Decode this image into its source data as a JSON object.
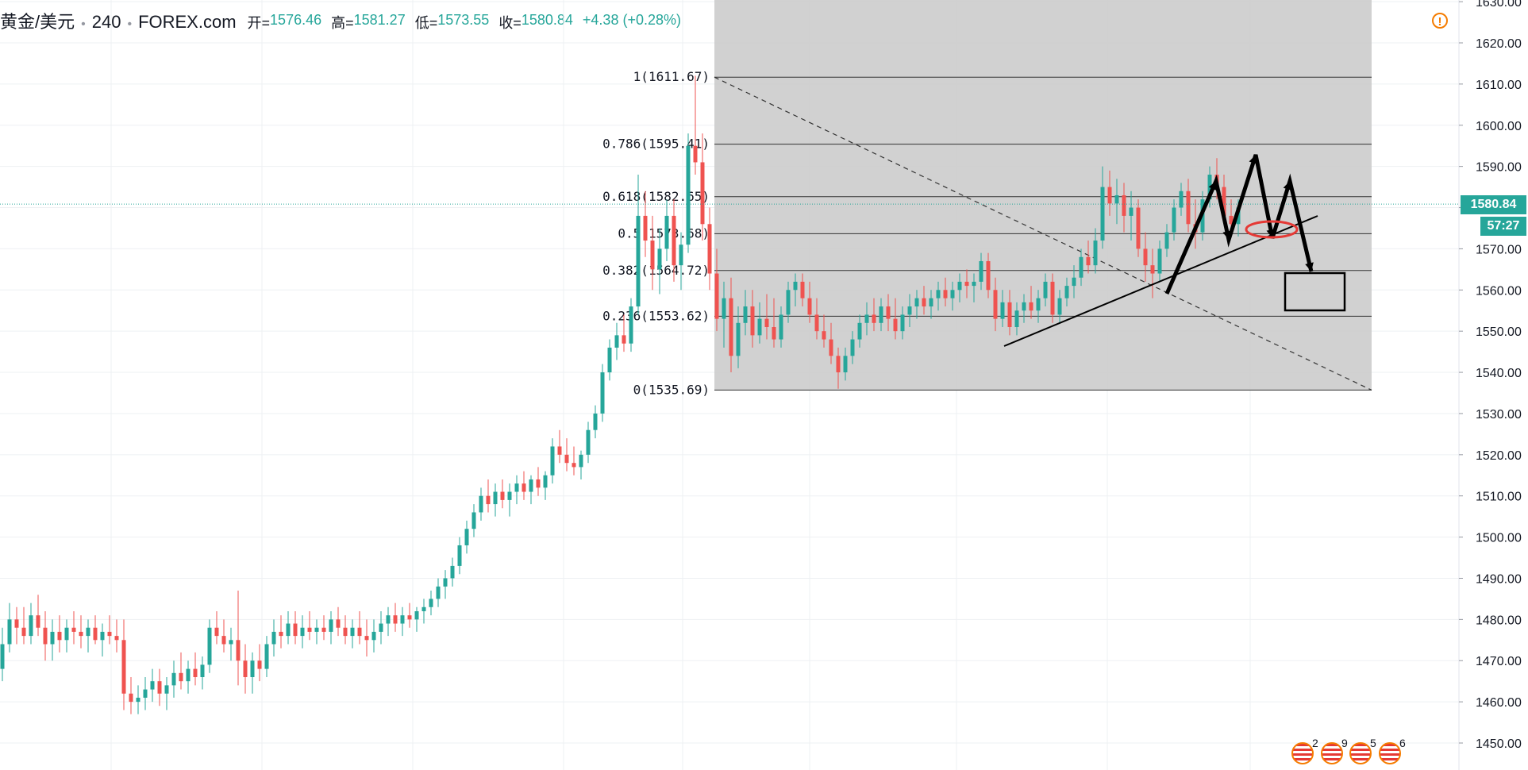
{
  "header": {
    "symbol": "黄金/美元",
    "timeframe": "240",
    "source": "FOREX.com",
    "open_label": "开=",
    "open": "1576.46",
    "high_label": "高=",
    "high": "1581.27",
    "low_label": "低=",
    "low": "1573.55",
    "close_label": "收=",
    "close": "1580.84",
    "change": "+4.38 (+0.28%)"
  },
  "warning_glyph": "!",
  "price_tags": {
    "last": "1580.84",
    "countdown": "57:27"
  },
  "events": [
    "2",
    "9",
    "5",
    "6"
  ],
  "colors": {
    "up": "#26a69a",
    "down": "#ef5350",
    "fib_box": "#cccccc",
    "ellipse": "#e53935",
    "annotation": "#000000"
  },
  "chart_data": {
    "type": "candlestick",
    "ylim": [
      1445,
      1630
    ],
    "yticks": [
      "1450.00",
      "1460.00",
      "1470.00",
      "1480.00",
      "1490.00",
      "1500.00",
      "1510.00",
      "1520.00",
      "1530.00",
      "1540.00",
      "1550.00",
      "1560.00",
      "1570.00",
      "1580.00",
      "1590.00",
      "1600.00",
      "1610.00",
      "1620.00",
      "1630.00"
    ],
    "series": [
      {
        "type": "candles",
        "ohlc": [
          [
            1468,
            1478,
            1465,
            1474
          ],
          [
            1474,
            1484,
            1472,
            1480
          ],
          [
            1480,
            1483,
            1474,
            1478
          ],
          [
            1478,
            1483,
            1474,
            1476
          ],
          [
            1476,
            1484,
            1474,
            1481
          ],
          [
            1481,
            1486,
            1476,
            1478
          ],
          [
            1478,
            1482,
            1470,
            1474
          ],
          [
            1474,
            1480,
            1470,
            1477
          ],
          [
            1477,
            1481,
            1472,
            1475
          ],
          [
            1475,
            1480,
            1472,
            1478
          ],
          [
            1478,
            1482,
            1474,
            1477
          ],
          [
            1477,
            1481,
            1473,
            1476
          ],
          [
            1476,
            1480,
            1472,
            1478
          ],
          [
            1478,
            1481,
            1474,
            1475
          ],
          [
            1475,
            1479,
            1471,
            1477
          ],
          [
            1477,
            1481,
            1474,
            1476
          ],
          [
            1476,
            1480,
            1472,
            1475
          ],
          [
            1475,
            1480,
            1458,
            1462
          ],
          [
            1462,
            1466,
            1457,
            1460
          ],
          [
            1460,
            1464,
            1457,
            1461
          ],
          [
            1461,
            1466,
            1458,
            1463
          ],
          [
            1463,
            1468,
            1460,
            1465
          ],
          [
            1465,
            1468,
            1459,
            1462
          ],
          [
            1462,
            1466,
            1458,
            1464
          ],
          [
            1464,
            1470,
            1461,
            1467
          ],
          [
            1467,
            1472,
            1463,
            1465
          ],
          [
            1465,
            1470,
            1462,
            1468
          ],
          [
            1468,
            1472,
            1464,
            1466
          ],
          [
            1466,
            1471,
            1463,
            1469
          ],
          [
            1469,
            1480,
            1467,
            1478
          ],
          [
            1478,
            1482,
            1474,
            1476
          ],
          [
            1476,
            1480,
            1472,
            1474
          ],
          [
            1474,
            1478,
            1470,
            1475
          ],
          [
            1475,
            1487,
            1464,
            1470
          ],
          [
            1470,
            1474,
            1462,
            1466
          ],
          [
            1466,
            1472,
            1462,
            1470
          ],
          [
            1470,
            1474,
            1465,
            1468
          ],
          [
            1468,
            1476,
            1466,
            1474
          ],
          [
            1474,
            1480,
            1471,
            1477
          ],
          [
            1477,
            1481,
            1473,
            1476
          ],
          [
            1476,
            1482,
            1474,
            1479
          ],
          [
            1479,
            1482,
            1474,
            1476
          ],
          [
            1476,
            1481,
            1473,
            1478
          ],
          [
            1478,
            1482,
            1475,
            1477
          ],
          [
            1477,
            1480,
            1474,
            1478
          ],
          [
            1478,
            1481,
            1475,
            1477
          ],
          [
            1477,
            1482,
            1474,
            1480
          ],
          [
            1480,
            1483,
            1476,
            1478
          ],
          [
            1478,
            1481,
            1474,
            1476
          ],
          [
            1476,
            1480,
            1473,
            1478
          ],
          [
            1478,
            1482,
            1474,
            1476
          ],
          [
            1476,
            1480,
            1471,
            1475
          ],
          [
            1475,
            1480,
            1472,
            1477
          ],
          [
            1477,
            1482,
            1474,
            1479
          ],
          [
            1479,
            1483,
            1476,
            1481
          ],
          [
            1481,
            1484,
            1477,
            1479
          ],
          [
            1479,
            1483,
            1476,
            1481
          ],
          [
            1481,
            1484,
            1478,
            1480
          ],
          [
            1480,
            1483,
            1477,
            1482
          ],
          [
            1482,
            1485,
            1479,
            1483
          ],
          [
            1483,
            1487,
            1481,
            1485
          ],
          [
            1485,
            1490,
            1483,
            1488
          ],
          [
            1488,
            1492,
            1485,
            1490
          ],
          [
            1490,
            1495,
            1488,
            1493
          ],
          [
            1493,
            1500,
            1491,
            1498
          ],
          [
            1498,
            1504,
            1496,
            1502
          ],
          [
            1502,
            1508,
            1500,
            1506
          ],
          [
            1506,
            1512,
            1504,
            1510
          ],
          [
            1510,
            1514,
            1506,
            1508
          ],
          [
            1508,
            1513,
            1505,
            1511
          ],
          [
            1511,
            1514,
            1507,
            1509
          ],
          [
            1509,
            1513,
            1505,
            1511
          ],
          [
            1511,
            1515,
            1508,
            1513
          ],
          [
            1513,
            1516,
            1509,
            1511
          ],
          [
            1511,
            1515,
            1508,
            1514
          ],
          [
            1514,
            1517,
            1510,
            1512
          ],
          [
            1512,
            1516,
            1509,
            1515
          ],
          [
            1515,
            1524,
            1513,
            1522
          ],
          [
            1522,
            1526,
            1518,
            1520
          ],
          [
            1520,
            1524,
            1516,
            1518
          ],
          [
            1518,
            1522,
            1515,
            1517
          ],
          [
            1517,
            1521,
            1514,
            1520
          ],
          [
            1520,
            1528,
            1518,
            1526
          ],
          [
            1526,
            1532,
            1524,
            1530
          ],
          [
            1530,
            1542,
            1528,
            1540
          ],
          [
            1540,
            1548,
            1538,
            1546
          ],
          [
            1546,
            1552,
            1543,
            1549
          ],
          [
            1549,
            1554,
            1545,
            1547
          ],
          [
            1547,
            1558,
            1545,
            1556
          ],
          [
            1556,
            1588,
            1554,
            1578
          ],
          [
            1578,
            1584,
            1568,
            1572
          ],
          [
            1572,
            1578,
            1560,
            1565
          ],
          [
            1565,
            1575,
            1559,
            1570
          ],
          [
            1570,
            1582,
            1567,
            1578
          ],
          [
            1578,
            1582,
            1562,
            1566
          ],
          [
            1566,
            1574,
            1560,
            1571
          ],
          [
            1571,
            1598,
            1569,
            1595
          ],
          [
            1595,
            1612,
            1588,
            1591
          ],
          [
            1591,
            1598,
            1572,
            1576
          ],
          [
            1576,
            1580,
            1560,
            1564
          ],
          [
            1564,
            1570,
            1550,
            1553
          ],
          [
            1553,
            1562,
            1546,
            1558
          ],
          [
            1558,
            1563,
            1540,
            1544
          ],
          [
            1544,
            1556,
            1541,
            1552
          ],
          [
            1552,
            1560,
            1549,
            1556
          ],
          [
            1556,
            1560,
            1546,
            1549
          ],
          [
            1549,
            1557,
            1547,
            1553
          ],
          [
            1553,
            1559,
            1548,
            1551
          ],
          [
            1551,
            1558,
            1546,
            1548
          ],
          [
            1548,
            1556,
            1546,
            1554
          ],
          [
            1554,
            1562,
            1552,
            1560
          ],
          [
            1560,
            1564,
            1556,
            1562
          ],
          [
            1562,
            1564,
            1556,
            1558
          ],
          [
            1558,
            1562,
            1552,
            1554
          ],
          [
            1554,
            1558,
            1548,
            1550
          ],
          [
            1550,
            1554,
            1546,
            1548
          ],
          [
            1548,
            1552,
            1542,
            1544
          ],
          [
            1544,
            1546,
            1536,
            1540
          ],
          [
            1540,
            1546,
            1538,
            1544
          ],
          [
            1544,
            1550,
            1542,
            1548
          ],
          [
            1548,
            1554,
            1546,
            1552
          ],
          [
            1552,
            1557,
            1549,
            1554
          ],
          [
            1554,
            1558,
            1550,
            1552
          ],
          [
            1552,
            1558,
            1550,
            1556
          ],
          [
            1556,
            1559,
            1550,
            1553
          ],
          [
            1553,
            1558,
            1548,
            1550
          ],
          [
            1550,
            1556,
            1548,
            1554
          ],
          [
            1554,
            1559,
            1551,
            1556
          ],
          [
            1556,
            1560,
            1553,
            1558
          ],
          [
            1558,
            1561,
            1554,
            1556
          ],
          [
            1556,
            1560,
            1553,
            1558
          ],
          [
            1558,
            1562,
            1555,
            1560
          ],
          [
            1560,
            1563,
            1556,
            1558
          ],
          [
            1558,
            1562,
            1555,
            1560
          ],
          [
            1560,
            1564,
            1557,
            1562
          ],
          [
            1562,
            1565,
            1558,
            1561
          ],
          [
            1561,
            1564,
            1557,
            1562
          ],
          [
            1562,
            1569,
            1560,
            1567
          ],
          [
            1567,
            1569,
            1558,
            1560
          ],
          [
            1560,
            1563,
            1550,
            1553
          ],
          [
            1553,
            1560,
            1551,
            1557
          ],
          [
            1557,
            1560,
            1549,
            1551
          ],
          [
            1551,
            1557,
            1549,
            1555
          ],
          [
            1555,
            1559,
            1552,
            1557
          ],
          [
            1557,
            1561,
            1553,
            1555
          ],
          [
            1555,
            1560,
            1552,
            1558
          ],
          [
            1558,
            1564,
            1556,
            1562
          ],
          [
            1562,
            1564,
            1552,
            1554
          ],
          [
            1554,
            1560,
            1552,
            1558
          ],
          [
            1558,
            1563,
            1556,
            1561
          ],
          [
            1561,
            1566,
            1558,
            1563
          ],
          [
            1563,
            1570,
            1561,
            1568
          ],
          [
            1568,
            1572,
            1564,
            1566
          ],
          [
            1566,
            1575,
            1564,
            1572
          ],
          [
            1572,
            1590,
            1570,
            1585
          ],
          [
            1585,
            1589,
            1578,
            1581
          ],
          [
            1581,
            1587,
            1576,
            1583
          ],
          [
            1583,
            1586,
            1574,
            1578
          ],
          [
            1578,
            1584,
            1572,
            1580
          ],
          [
            1580,
            1582,
            1568,
            1570
          ],
          [
            1570,
            1574,
            1562,
            1566
          ],
          [
            1566,
            1570,
            1558,
            1564
          ],
          [
            1564,
            1572,
            1562,
            1570
          ],
          [
            1570,
            1576,
            1568,
            1574
          ],
          [
            1574,
            1582,
            1572,
            1580
          ],
          [
            1580,
            1586,
            1578,
            1584
          ],
          [
            1584,
            1587,
            1574,
            1576
          ],
          [
            1576,
            1582,
            1570,
            1574
          ],
          [
            1574,
            1584,
            1572,
            1582
          ],
          [
            1582,
            1590,
            1580,
            1588
          ],
          [
            1588,
            1592,
            1582,
            1585
          ],
          [
            1585,
            1588,
            1576,
            1578
          ],
          [
            1578,
            1582,
            1574,
            1576
          ],
          [
            1576,
            1582,
            1573,
            1580
          ]
        ]
      }
    ],
    "fibonacci": [
      {
        "ratio": 1,
        "label": "1(1611.67)",
        "price": 1611.67
      },
      {
        "ratio": 0.786,
        "label": "0.786(1595.41)",
        "price": 1595.41
      },
      {
        "ratio": 0.618,
        "label": "0.618(1582.65)",
        "price": 1582.65
      },
      {
        "ratio": 0.5,
        "label": "0.5(1573.68)",
        "price": 1573.68
      },
      {
        "ratio": 0.382,
        "label": "0.382(1564.72)",
        "price": 1564.72
      },
      {
        "ratio": 0.236,
        "label": "0.236(1553.62)",
        "price": 1553.62
      },
      {
        "ratio": 0,
        "label": "0(1535.69)",
        "price": 1535.69
      }
    ],
    "last_price": 1580.84,
    "grid": true,
    "price_axis": "right"
  }
}
